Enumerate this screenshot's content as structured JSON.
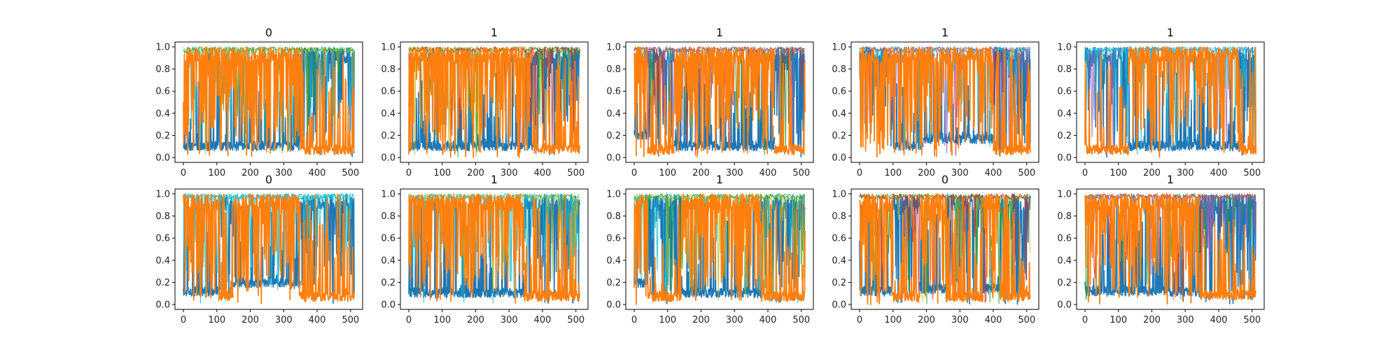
{
  "chart_data": [
    {
      "type": "line",
      "title": "0",
      "xlim": [
        0,
        511
      ],
      "ylim": [
        0.0,
        1.0
      ],
      "xticks": [
        0,
        100,
        200,
        300,
        400,
        500
      ],
      "xtick_labels": [
        "0",
        "100",
        "200",
        "300",
        "400",
        "500"
      ],
      "yticks": [
        0.0,
        0.2,
        0.4,
        0.6,
        0.8,
        1.0
      ],
      "ytick_labels": [
        "0.0",
        "0.2",
        "0.4",
        "0.6",
        "0.8",
        "1.0"
      ],
      "legend": "none",
      "grid": false,
      "series": [
        {
          "color": "#1f77b4",
          "segments": [
            {
              "x": [
                0,
                350
              ],
              "level": 0.12
            },
            {
              "x": [
                350,
                511
              ],
              "level": 0.9
            }
          ]
        },
        {
          "color": "#ff7f0e",
          "segments": [
            {
              "x": [
                0,
                350
              ],
              "level": 0.9
            },
            {
              "x": [
                350,
                511
              ],
              "level": 0.05
            }
          ]
        }
      ]
    },
    {
      "type": "line",
      "title": "1",
      "xlim": [
        0,
        511
      ],
      "ylim": [
        0.0,
        1.0
      ],
      "xticks": [
        0,
        100,
        200,
        300,
        400,
        500
      ],
      "xtick_labels": [
        "0",
        "100",
        "200",
        "300",
        "400",
        "500"
      ],
      "yticks": [
        0.0,
        0.2,
        0.4,
        0.6,
        0.8,
        1.0
      ],
      "ytick_labels": [
        "0.0",
        "0.2",
        "0.4",
        "0.6",
        "0.8",
        "1.0"
      ],
      "legend": "none",
      "grid": false,
      "series": [
        {
          "color": "#1f77b4",
          "segments": [
            {
              "x": [
                0,
                370
              ],
              "level": 0.12
            },
            {
              "x": [
                370,
                511
              ],
              "level": 0.9
            }
          ]
        },
        {
          "color": "#ff7f0e",
          "segments": [
            {
              "x": [
                0,
                370
              ],
              "level": 0.9
            },
            {
              "x": [
                370,
                511
              ],
              "level": 0.07
            }
          ]
        }
      ]
    },
    {
      "type": "line",
      "title": "1",
      "xlim": [
        0,
        511
      ],
      "ylim": [
        0.0,
        1.0
      ],
      "xticks": [
        0,
        100,
        200,
        300,
        400,
        500
      ],
      "xtick_labels": [
        "0",
        "100",
        "200",
        "300",
        "400",
        "500"
      ],
      "yticks": [
        0.0,
        0.2,
        0.4,
        0.6,
        0.8,
        1.0
      ],
      "ytick_labels": [
        "0.0",
        "0.2",
        "0.4",
        "0.6",
        "0.8",
        "1.0"
      ],
      "legend": "none",
      "grid": false,
      "series": [
        {
          "color": "#1f77b4",
          "segments": [
            {
              "x": [
                0,
                40
              ],
              "level": 0.3
            },
            {
              "x": [
                40,
                120
              ],
              "level": 0.9
            },
            {
              "x": [
                120,
                420
              ],
              "level": 0.12
            },
            {
              "x": [
                420,
                511
              ],
              "level": 0.9
            }
          ]
        },
        {
          "color": "#ff7f0e",
          "segments": [
            {
              "x": [
                0,
                40
              ],
              "level": 0.85
            },
            {
              "x": [
                40,
                120
              ],
              "level": 0.05
            },
            {
              "x": [
                120,
                420
              ],
              "level": 0.9
            },
            {
              "x": [
                420,
                511
              ],
              "level": 0.05
            }
          ]
        }
      ]
    },
    {
      "type": "line",
      "title": "1",
      "xlim": [
        0,
        511
      ],
      "ylim": [
        0.0,
        1.0
      ],
      "xticks": [
        0,
        100,
        200,
        300,
        400,
        500
      ],
      "xtick_labels": [
        "0",
        "100",
        "200",
        "300",
        "400",
        "500"
      ],
      "yticks": [
        0.0,
        0.2,
        0.4,
        0.6,
        0.8,
        1.0
      ],
      "ytick_labels": [
        "0.0",
        "0.2",
        "0.4",
        "0.6",
        "0.8",
        "1.0"
      ],
      "legend": "none",
      "grid": false,
      "series": [
        {
          "color": "#1f77b4",
          "segments": [
            {
              "x": [
                0,
                100
              ],
              "level": 0.7
            },
            {
              "x": [
                100,
                190
              ],
              "level": 0.12
            },
            {
              "x": [
                190,
                400
              ],
              "level": 0.25
            },
            {
              "x": [
                400,
                511
              ],
              "level": 0.9
            }
          ]
        },
        {
          "color": "#ff7f0e",
          "segments": [
            {
              "x": [
                0,
                100
              ],
              "level": 0.6
            },
            {
              "x": [
                100,
                190
              ],
              "level": 0.85
            },
            {
              "x": [
                190,
                400
              ],
              "level": 0.85
            },
            {
              "x": [
                400,
                511
              ],
              "level": 0.05
            }
          ]
        }
      ]
    },
    {
      "type": "line",
      "title": "1",
      "xlim": [
        0,
        511
      ],
      "ylim": [
        0.0,
        1.0
      ],
      "xticks": [
        0,
        100,
        200,
        300,
        400,
        500
      ],
      "xtick_labels": [
        "0",
        "100",
        "200",
        "300",
        "400",
        "500"
      ],
      "yticks": [
        0.0,
        0.2,
        0.4,
        0.6,
        0.8,
        1.0
      ],
      "ytick_labels": [
        "0.0",
        "0.2",
        "0.4",
        "0.6",
        "0.8",
        "1.0"
      ],
      "legend": "none",
      "grid": false,
      "series": [
        {
          "color": "#1f77b4",
          "segments": [
            {
              "x": [
                0,
                130
              ],
              "level": 0.9
            },
            {
              "x": [
                130,
                460
              ],
              "level": 0.12
            },
            {
              "x": [
                460,
                511
              ],
              "level": 0.9
            }
          ]
        },
        {
          "color": "#ff7f0e",
          "segments": [
            {
              "x": [
                0,
                130
              ],
              "level": 0.05
            },
            {
              "x": [
                130,
                460
              ],
              "level": 0.9
            },
            {
              "x": [
                460,
                511
              ],
              "level": 0.05
            }
          ]
        }
      ]
    },
    {
      "type": "line",
      "title": "0",
      "xlim": [
        0,
        511
      ],
      "ylim": [
        0.0,
        1.0
      ],
      "xticks": [
        0,
        100,
        200,
        300,
        400,
        500
      ],
      "xtick_labels": [
        "0",
        "100",
        "200",
        "300",
        "400",
        "500"
      ],
      "yticks": [
        0.0,
        0.2,
        0.4,
        0.6,
        0.8,
        1.0
      ],
      "ytick_labels": [
        "0.0",
        "0.2",
        "0.4",
        "0.6",
        "0.8",
        "1.0"
      ],
      "legend": "none",
      "grid": false,
      "series": [
        {
          "color": "#1f77b4",
          "segments": [
            {
              "x": [
                0,
                110
              ],
              "level": 0.15
            },
            {
              "x": [
                110,
                150
              ],
              "level": 0.85
            },
            {
              "x": [
                150,
                350
              ],
              "level": 0.3
            },
            {
              "x": [
                350,
                511
              ],
              "level": 0.9
            }
          ]
        },
        {
          "color": "#ff7f0e",
          "segments": [
            {
              "x": [
                0,
                110
              ],
              "level": 0.85
            },
            {
              "x": [
                110,
                150
              ],
              "level": 0.06
            },
            {
              "x": [
                150,
                350
              ],
              "level": 0.75
            },
            {
              "x": [
                350,
                511
              ],
              "level": 0.05
            }
          ]
        }
      ]
    },
    {
      "type": "line",
      "title": "1",
      "xlim": [
        0,
        511
      ],
      "ylim": [
        0.0,
        1.0
      ],
      "xticks": [
        0,
        100,
        200,
        300,
        400,
        500
      ],
      "xtick_labels": [
        "0",
        "100",
        "200",
        "300",
        "400",
        "500"
      ],
      "yticks": [
        0.0,
        0.2,
        0.4,
        0.6,
        0.8,
        1.0
      ],
      "ytick_labels": [
        "0.0",
        "0.2",
        "0.4",
        "0.6",
        "0.8",
        "1.0"
      ],
      "legend": "none",
      "grid": false,
      "series": [
        {
          "color": "#1f77b4",
          "segments": [
            {
              "x": [
                0,
                345
              ],
              "level": 0.12
            },
            {
              "x": [
                345,
                511
              ],
              "level": 0.9
            }
          ]
        },
        {
          "color": "#ff7f0e",
          "segments": [
            {
              "x": [
                0,
                345
              ],
              "level": 0.9
            },
            {
              "x": [
                345,
                511
              ],
              "level": 0.06
            }
          ]
        }
      ]
    },
    {
      "type": "line",
      "title": "1",
      "xlim": [
        0,
        511
      ],
      "ylim": [
        0.0,
        1.0
      ],
      "xticks": [
        0,
        100,
        200,
        300,
        400,
        500
      ],
      "xtick_labels": [
        "0",
        "100",
        "200",
        "300",
        "400",
        "500"
      ],
      "yticks": [
        0.0,
        0.2,
        0.4,
        0.6,
        0.8,
        1.0
      ],
      "ytick_labels": [
        "0.0",
        "0.2",
        "0.4",
        "0.6",
        "0.8",
        "1.0"
      ],
      "legend": "none",
      "grid": false,
      "series": [
        {
          "color": "#1f77b4",
          "segments": [
            {
              "x": [
                0,
                40
              ],
              "level": 0.3
            },
            {
              "x": [
                40,
                140
              ],
              "level": 0.9
            },
            {
              "x": [
                140,
                380
              ],
              "level": 0.12
            },
            {
              "x": [
                380,
                511
              ],
              "level": 0.9
            }
          ]
        },
        {
          "color": "#ff7f0e",
          "segments": [
            {
              "x": [
                0,
                40
              ],
              "level": 0.85
            },
            {
              "x": [
                40,
                140
              ],
              "level": 0.05
            },
            {
              "x": [
                140,
                380
              ],
              "level": 0.9
            },
            {
              "x": [
                380,
                511
              ],
              "level": 0.05
            }
          ]
        }
      ]
    },
    {
      "type": "line",
      "title": "0",
      "xlim": [
        0,
        511
      ],
      "ylim": [
        0.0,
        1.0
      ],
      "xticks": [
        0,
        100,
        200,
        300,
        400,
        500
      ],
      "xtick_labels": [
        "0",
        "100",
        "200",
        "300",
        "400",
        "500"
      ],
      "yticks": [
        0.0,
        0.2,
        0.4,
        0.6,
        0.8,
        1.0
      ],
      "ytick_labels": [
        "0.0",
        "0.2",
        "0.4",
        "0.6",
        "0.8",
        "1.0"
      ],
      "legend": "none",
      "grid": false,
      "series": [
        {
          "color": "#1f77b4",
          "segments": [
            {
              "x": [
                0,
                100
              ],
              "level": 0.15
            },
            {
              "x": [
                100,
                180
              ],
              "level": 0.9
            },
            {
              "x": [
                180,
                260
              ],
              "level": 0.2
            },
            {
              "x": [
                260,
                370
              ],
              "level": 0.9
            },
            {
              "x": [
                370,
                420
              ],
              "level": 0.2
            },
            {
              "x": [
                420,
                511
              ],
              "level": 0.9
            }
          ]
        },
        {
          "color": "#ff7f0e",
          "segments": [
            {
              "x": [
                0,
                100
              ],
              "level": 0.85
            },
            {
              "x": [
                100,
                180
              ],
              "level": 0.05
            },
            {
              "x": [
                180,
                260
              ],
              "level": 0.85
            },
            {
              "x": [
                260,
                370
              ],
              "level": 0.05
            },
            {
              "x": [
                370,
                420
              ],
              "level": 0.85
            },
            {
              "x": [
                420,
                511
              ],
              "level": 0.05
            }
          ]
        }
      ]
    },
    {
      "type": "line",
      "title": "1",
      "xlim": [
        0,
        511
      ],
      "ylim": [
        0.0,
        1.0
      ],
      "xticks": [
        0,
        100,
        200,
        300,
        400,
        500
      ],
      "xtick_labels": [
        "0",
        "100",
        "200",
        "300",
        "400",
        "500"
      ],
      "yticks": [
        0.0,
        0.2,
        0.4,
        0.6,
        0.8,
        1.0
      ],
      "ytick_labels": [
        "0.0",
        "0.2",
        "0.4",
        "0.6",
        "0.8",
        "1.0"
      ],
      "legend": "none",
      "grid": false,
      "series": [
        {
          "color": "#1f77b4",
          "segments": [
            {
              "x": [
                0,
                340
              ],
              "level": 0.15
            },
            {
              "x": [
                340,
                511
              ],
              "level": 0.9
            }
          ]
        },
        {
          "color": "#ff7f0e",
          "segments": [
            {
              "x": [
                0,
                340
              ],
              "level": 0.85
            },
            {
              "x": [
                340,
                511
              ],
              "level": 0.08
            }
          ]
        }
      ]
    }
  ],
  "colors": {
    "blue": "#1f77b4",
    "orange": "#ff7f0e",
    "cyan": "#17becf",
    "olive": "#bcbd22",
    "green": "#2ca02c",
    "red": "#d62728",
    "purple": "#9467bd",
    "axes_edge": "#000000"
  }
}
